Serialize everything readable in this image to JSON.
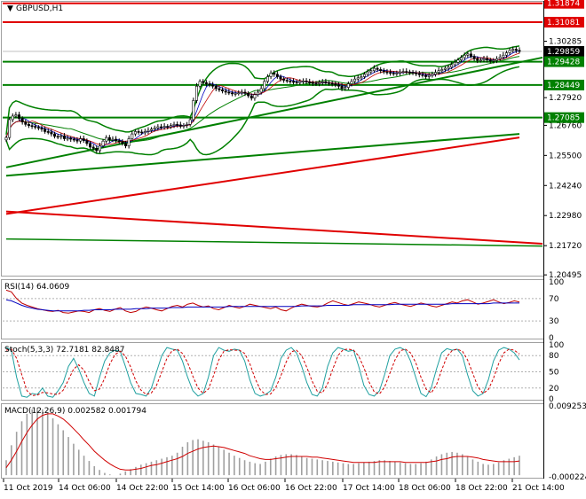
{
  "chart_data": [
    {
      "type": "candlestick",
      "title": "GBPUSD,H1",
      "ylim": [
        1.205,
        1.319
      ],
      "y_ticks": [
        "1.31874",
        "1.31081",
        "1.30285",
        "1.29859",
        "1.29428",
        "1.28449",
        "1.27920",
        "1.27085",
        "1.26760",
        "1.25500",
        "1.24240",
        "1.22980",
        "1.21720",
        "1.20495"
      ],
      "price_labels": [
        {
          "text": "1.31874",
          "value": 1.31874,
          "color": "#e00000",
          "style": "red"
        },
        {
          "text": "1.31081",
          "value": 1.31081,
          "color": "#e00000",
          "style": "red"
        },
        {
          "text": "1.29859",
          "value": 1.29859,
          "color": "#000000",
          "style": "dark"
        },
        {
          "text": "1.29428",
          "value": 1.29428,
          "color": "#008000",
          "style": "green"
        },
        {
          "text": "1.28449",
          "value": 1.28449,
          "color": "#008000",
          "style": "green"
        },
        {
          "text": "1.27085",
          "value": 1.27085,
          "color": "#008000",
          "style": "green"
        }
      ],
      "x_labels": [
        "11 Oct 2019",
        "14 Oct 06:00",
        "14 Oct 22:00",
        "15 Oct 14:00",
        "16 Oct 06:00",
        "16 Oct 22:00",
        "17 Oct 14:00",
        "18 Oct 06:00",
        "18 Oct 22:00",
        "21 Oct 14:00"
      ],
      "close": [
        1.2625,
        1.27,
        1.2715,
        1.272,
        1.2705,
        1.269,
        1.268,
        1.2675,
        1.2672,
        1.2668,
        1.2665,
        1.266,
        1.265,
        1.2648,
        1.264,
        1.263,
        1.2628,
        1.2632,
        1.262,
        1.2622,
        1.2618,
        1.2615,
        1.261,
        1.262,
        1.2612,
        1.26,
        1.2585,
        1.258,
        1.257,
        1.259,
        1.261,
        1.2625,
        1.2615,
        1.2618,
        1.2612,
        1.2608,
        1.26,
        1.259,
        1.262,
        1.264,
        1.265,
        1.2648,
        1.2645,
        1.265,
        1.2655,
        1.266,
        1.2665,
        1.267,
        1.2668,
        1.2672,
        1.267,
        1.2675,
        1.268,
        1.2678,
        1.2672,
        1.2676,
        1.268,
        1.27,
        1.278,
        1.284,
        1.286,
        1.2855,
        1.285,
        1.2845,
        1.284,
        1.283,
        1.2825,
        1.282,
        1.2815,
        1.2812,
        1.2808,
        1.281,
        1.2812,
        1.2815,
        1.281,
        1.28,
        1.279,
        1.2805,
        1.2815,
        1.283,
        1.286,
        1.288,
        1.2895,
        1.289,
        1.288,
        1.287,
        1.2865,
        1.2862,
        1.286,
        1.2858,
        1.2855,
        1.286,
        1.2862,
        1.2858,
        1.2855,
        1.2852,
        1.285,
        1.2855,
        1.2858,
        1.2855,
        1.2852,
        1.285,
        1.2845,
        1.284,
        1.283,
        1.2835,
        1.285,
        1.286,
        1.287,
        1.2875,
        1.288,
        1.289,
        1.29,
        1.2905,
        1.2915,
        1.291,
        1.2905,
        1.29,
        1.2898,
        1.2895,
        1.2892,
        1.2895,
        1.29,
        1.2902,
        1.29,
        1.2898,
        1.2895,
        1.2892,
        1.2888,
        1.2885,
        1.288,
        1.2885,
        1.289,
        1.2898,
        1.2905,
        1.291,
        1.2915,
        1.292,
        1.293,
        1.294,
        1.295,
        1.296,
        1.297,
        1.2975,
        1.2965,
        1.2955,
        1.2948,
        1.295,
        1.2955,
        1.295,
        1.2945,
        1.2948,
        1.2955,
        1.2962,
        1.297,
        1.298,
        1.299,
        1.2995,
        1.299,
        1.2986
      ],
      "indicators": [
        "Bollinger Bands",
        "Moving averages",
        "Support/resistance levels",
        "Trend lines"
      ],
      "grid": true
    },
    {
      "type": "line",
      "title": "RSI(14) 64.0609",
      "ylim": [
        0,
        100
      ],
      "y_ticks": [
        "100",
        "70",
        "30",
        "0"
      ],
      "levels": [
        70,
        30
      ],
      "series": [
        {
          "color": "#c00000",
          "values": [
            85,
            82,
            70,
            62,
            58,
            55,
            52,
            50,
            48,
            47,
            49,
            45,
            44,
            46,
            48,
            47,
            45,
            50,
            52,
            49,
            47,
            51,
            54,
            48,
            45,
            47,
            52,
            55,
            53,
            50,
            48,
            52,
            56,
            58,
            55,
            60,
            62,
            58,
            55,
            57,
            52,
            50,
            54,
            58,
            55,
            53,
            56,
            60,
            58,
            56,
            54,
            52,
            55,
            50,
            48,
            53,
            57,
            60,
            58,
            56,
            55,
            57,
            62,
            66,
            63,
            60,
            58,
            61,
            64,
            62,
            60,
            57,
            55,
            58,
            61,
            63,
            60,
            58,
            56,
            59,
            62,
            60,
            57,
            55,
            58,
            61,
            64,
            62,
            66,
            68,
            64,
            60,
            62,
            65,
            68,
            64,
            61,
            63,
            66,
            64
          ]
        },
        {
          "color": "#0000c0",
          "values": [
            68,
            66,
            62,
            58,
            55,
            53,
            51,
            50,
            49,
            48,
            48,
            48,
            48,
            48,
            48,
            49,
            49,
            50,
            50,
            50,
            50,
            51,
            51,
            51,
            51,
            52,
            52,
            52,
            53,
            53,
            53,
            53,
            54,
            54,
            54,
            55,
            55,
            55,
            55,
            55,
            55,
            55,
            55,
            56,
            56,
            56,
            56,
            56,
            56,
            56,
            56,
            56,
            56,
            56,
            56,
            56,
            56,
            57,
            57,
            57,
            57,
            57,
            58,
            58,
            58,
            58,
            58,
            59,
            59,
            59,
            59,
            59,
            59,
            59,
            59,
            60,
            60,
            60,
            60,
            60,
            60,
            60,
            60,
            60,
            60,
            60,
            61,
            61,
            61,
            61,
            61,
            61,
            61,
            61,
            62,
            62,
            62,
            62,
            62,
            62
          ]
        }
      ]
    },
    {
      "type": "line",
      "title": "Stoch(5,3,3) 72.7181 82.8487",
      "ylim": [
        0,
        100
      ],
      "y_ticks": [
        "100",
        "80",
        "50",
        "20",
        "0"
      ],
      "levels": [
        80,
        50,
        20
      ],
      "series": [
        {
          "color": "#20a0a0",
          "values": [
            95,
            90,
            40,
            5,
            3,
            10,
            8,
            20,
            5,
            3,
            15,
            30,
            60,
            75,
            55,
            30,
            10,
            5,
            40,
            70,
            85,
            90,
            88,
            60,
            30,
            10,
            8,
            5,
            20,
            50,
            80,
            95,
            92,
            90,
            70,
            40,
            15,
            5,
            10,
            40,
            80,
            95,
            90,
            88,
            92,
            90,
            70,
            35,
            10,
            5,
            8,
            15,
            40,
            75,
            90,
            95,
            85,
            60,
            30,
            8,
            5,
            20,
            60,
            85,
            95,
            92,
            88,
            90,
            60,
            25,
            8,
            5,
            15,
            45,
            80,
            92,
            95,
            90,
            70,
            40,
            10,
            4,
            20,
            55,
            85,
            93,
            90,
            92,
            80,
            45,
            15,
            5,
            10,
            35,
            70,
            90,
            95,
            92,
            85,
            72
          ]
        },
        {
          "color": "#d00000",
          "values": [
            90,
            92,
            75,
            45,
            15,
            6,
            7,
            12,
            11,
            9,
            8,
            16,
            35,
            55,
            63,
            53,
            32,
            15,
            18,
            38,
            65,
            82,
            88,
            79,
            59,
            33,
            16,
            8,
            11,
            25,
            50,
            75,
            89,
            92,
            84,
            67,
            42,
            20,
            10,
            18,
            43,
            72,
            88,
            91,
            90,
            90,
            84,
            65,
            38,
            17,
            8,
            9,
            21,
            43,
            68,
            87,
            90,
            80,
            58,
            33,
            14,
            11,
            28,
            55,
            80,
            91,
            92,
            90,
            79,
            58,
            31,
            13,
            9,
            22,
            47,
            72,
            89,
            92,
            85,
            67,
            40,
            18,
            11,
            26,
            53,
            78,
            89,
            92,
            88,
            72,
            47,
            22,
            10,
            17,
            38,
            65,
            85,
            92,
            90,
            83
          ]
        }
      ]
    },
    {
      "type": "bar",
      "title": "MACD(12,26,9) 0.002582 0.001794",
      "y_ticks": [
        "0.009253",
        "-0.000224"
      ],
      "ylim": [
        -0.000224,
        0.009253
      ],
      "histogram": [
        0.002,
        0.004,
        0.0058,
        0.0072,
        0.0082,
        0.0088,
        0.009,
        0.0088,
        0.0083,
        0.0076,
        0.0068,
        0.006,
        0.0051,
        0.0042,
        0.0034,
        0.0026,
        0.0019,
        0.0012,
        0.0007,
        0.0003,
        0.0001,
        0.0,
        0.0002,
        0.0005,
        0.0008,
        0.0011,
        0.0014,
        0.0016,
        0.0018,
        0.002,
        0.0022,
        0.0024,
        0.0026,
        0.003,
        0.0038,
        0.0044,
        0.0047,
        0.0048,
        0.0046,
        0.0044,
        0.0041,
        0.0038,
        0.0034,
        0.003,
        0.0026,
        0.0023,
        0.002,
        0.0018,
        0.0016,
        0.0015,
        0.0018,
        0.0022,
        0.0025,
        0.0027,
        0.0028,
        0.0028,
        0.0027,
        0.0025,
        0.0023,
        0.0022,
        0.0021,
        0.002,
        0.0019,
        0.0018,
        0.0017,
        0.0016,
        0.0015,
        0.0015,
        0.0016,
        0.0017,
        0.0018,
        0.0019,
        0.002,
        0.002,
        0.0019,
        0.0018,
        0.0017,
        0.0016,
        0.0015,
        0.0015,
        0.0016,
        0.0018,
        0.0021,
        0.0025,
        0.0028,
        0.003,
        0.0031,
        0.003,
        0.0028,
        0.0025,
        0.0021,
        0.0018,
        0.0015,
        0.0014,
        0.0015,
        0.0017,
        0.002,
        0.0022,
        0.0024,
        0.0026
      ],
      "signal": [
        0.001,
        0.002,
        0.0032,
        0.0045,
        0.0057,
        0.0067,
        0.0075,
        0.008,
        0.0082,
        0.0082,
        0.0079,
        0.0075,
        0.0069,
        0.0062,
        0.0055,
        0.0047,
        0.004,
        0.0032,
        0.0026,
        0.002,
        0.0015,
        0.0011,
        0.0008,
        0.0007,
        0.0007,
        0.0008,
        0.0009,
        0.0011,
        0.0013,
        0.0014,
        0.0016,
        0.0018,
        0.002,
        0.0022,
        0.0025,
        0.0029,
        0.0032,
        0.0035,
        0.0037,
        0.0038,
        0.0039,
        0.0038,
        0.0037,
        0.0035,
        0.0033,
        0.0031,
        0.0029,
        0.0026,
        0.0024,
        0.0022,
        0.0021,
        0.0021,
        0.0022,
        0.0023,
        0.0024,
        0.0025,
        0.0025,
        0.0025,
        0.0025,
        0.0024,
        0.0024,
        0.0023,
        0.0022,
        0.0021,
        0.002,
        0.0019,
        0.0018,
        0.0017,
        0.0017,
        0.0017,
        0.0017,
        0.0017,
        0.0018,
        0.0018,
        0.0018,
        0.0018,
        0.0018,
        0.0017,
        0.0017,
        0.0017,
        0.0017,
        0.0017,
        0.0018,
        0.0019,
        0.0021,
        0.0022,
        0.0024,
        0.0025,
        0.0025,
        0.0025,
        0.0024,
        0.0023,
        0.0021,
        0.002,
        0.0019,
        0.0018,
        0.0018,
        0.0018,
        0.0018,
        0.0019
      ]
    }
  ]
}
